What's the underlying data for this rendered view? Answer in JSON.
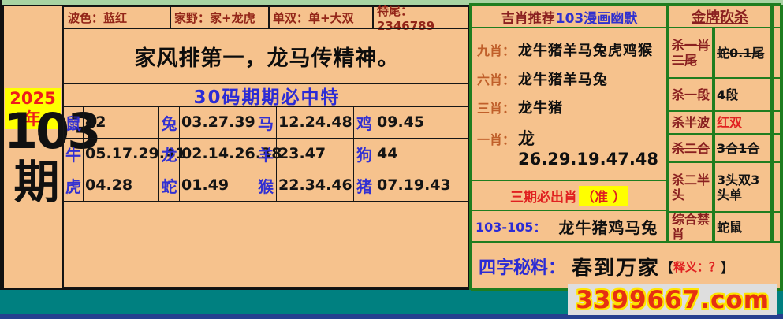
{
  "sheet": {
    "year": "2025年",
    "issue_number": "103",
    "issue_suffix": "期"
  },
  "top_cells": [
    "波色：蓝红",
    "家野：家+龙虎",
    "单双：单+大双",
    "特尾：2346789"
  ],
  "slogan": "家风排第一，龙马传精神。",
  "subtitle": "30码期期必中特",
  "zodiac_grid": {
    "cells": [
      {
        "animal": "鼠",
        "numbers": "42"
      },
      {
        "animal": "兔",
        "numbers": "03.27.39"
      },
      {
        "animal": "马",
        "numbers": "12.24.48"
      },
      {
        "animal": "鸡",
        "numbers": "09.45"
      },
      {
        "animal": "牛",
        "numbers": "05.17.29.41"
      },
      {
        "animal": "龙",
        "numbers": "02.14.26.38"
      },
      {
        "animal": "羊",
        "numbers": "23.47"
      },
      {
        "animal": "狗",
        "numbers": "44"
      },
      {
        "animal": "虎",
        "numbers": "04.28"
      },
      {
        "animal": "蛇",
        "numbers": "01.49"
      },
      {
        "animal": "猴",
        "numbers": "22.34.46"
      },
      {
        "animal": "猪",
        "numbers": "07.19.43"
      }
    ]
  },
  "recommend": {
    "title_prefix": "吉肖推荐",
    "title_link": "103漫画幽默",
    "rows": [
      {
        "label": "九肖：",
        "value": "龙牛猪羊马兔虎鸡猴"
      },
      {
        "label": "六肖：",
        "value": "龙牛猪羊马兔"
      },
      {
        "label": "三肖：",
        "value": "龙牛猪"
      },
      {
        "label": "一肖：",
        "value": "龙26.29.19.47.48"
      }
    ],
    "three_period_text": "三期必出肖",
    "three_period_mark": "（准 ）",
    "range_label": "103-105：",
    "range_value": "龙牛猪鸡马兔"
  },
  "kill": {
    "title": "金牌砍杀",
    "rows": [
      {
        "label": "杀一肖二尾",
        "value": "蛇0.1尾"
      },
      {
        "label": "杀一段",
        "value": "4段"
      },
      {
        "label": "杀半波",
        "value": "红双"
      },
      {
        "label": "杀二合",
        "value": "3合1合"
      },
      {
        "label": "杀二半头",
        "value": "3头双3头单"
      },
      {
        "label": "综合禁肖",
        "value": "蛇鼠"
      }
    ]
  },
  "secret": {
    "label": "四字秘料：",
    "value": "春到万家",
    "bracket_open": "【",
    "note": "释义：？",
    "bracket_close": "】"
  },
  "site": {
    "domain": "3399667.com"
  },
  "colors": {
    "background": "#f6c28d",
    "top_strip": "#a8d3a2",
    "bottom_strip": "#008080",
    "border_green": "#1f7d1f",
    "maroon_text": "#8a2020",
    "blue_text": "#2b2bd5",
    "red_text": "#e02020",
    "highlight_yellow": "#ffff00"
  }
}
